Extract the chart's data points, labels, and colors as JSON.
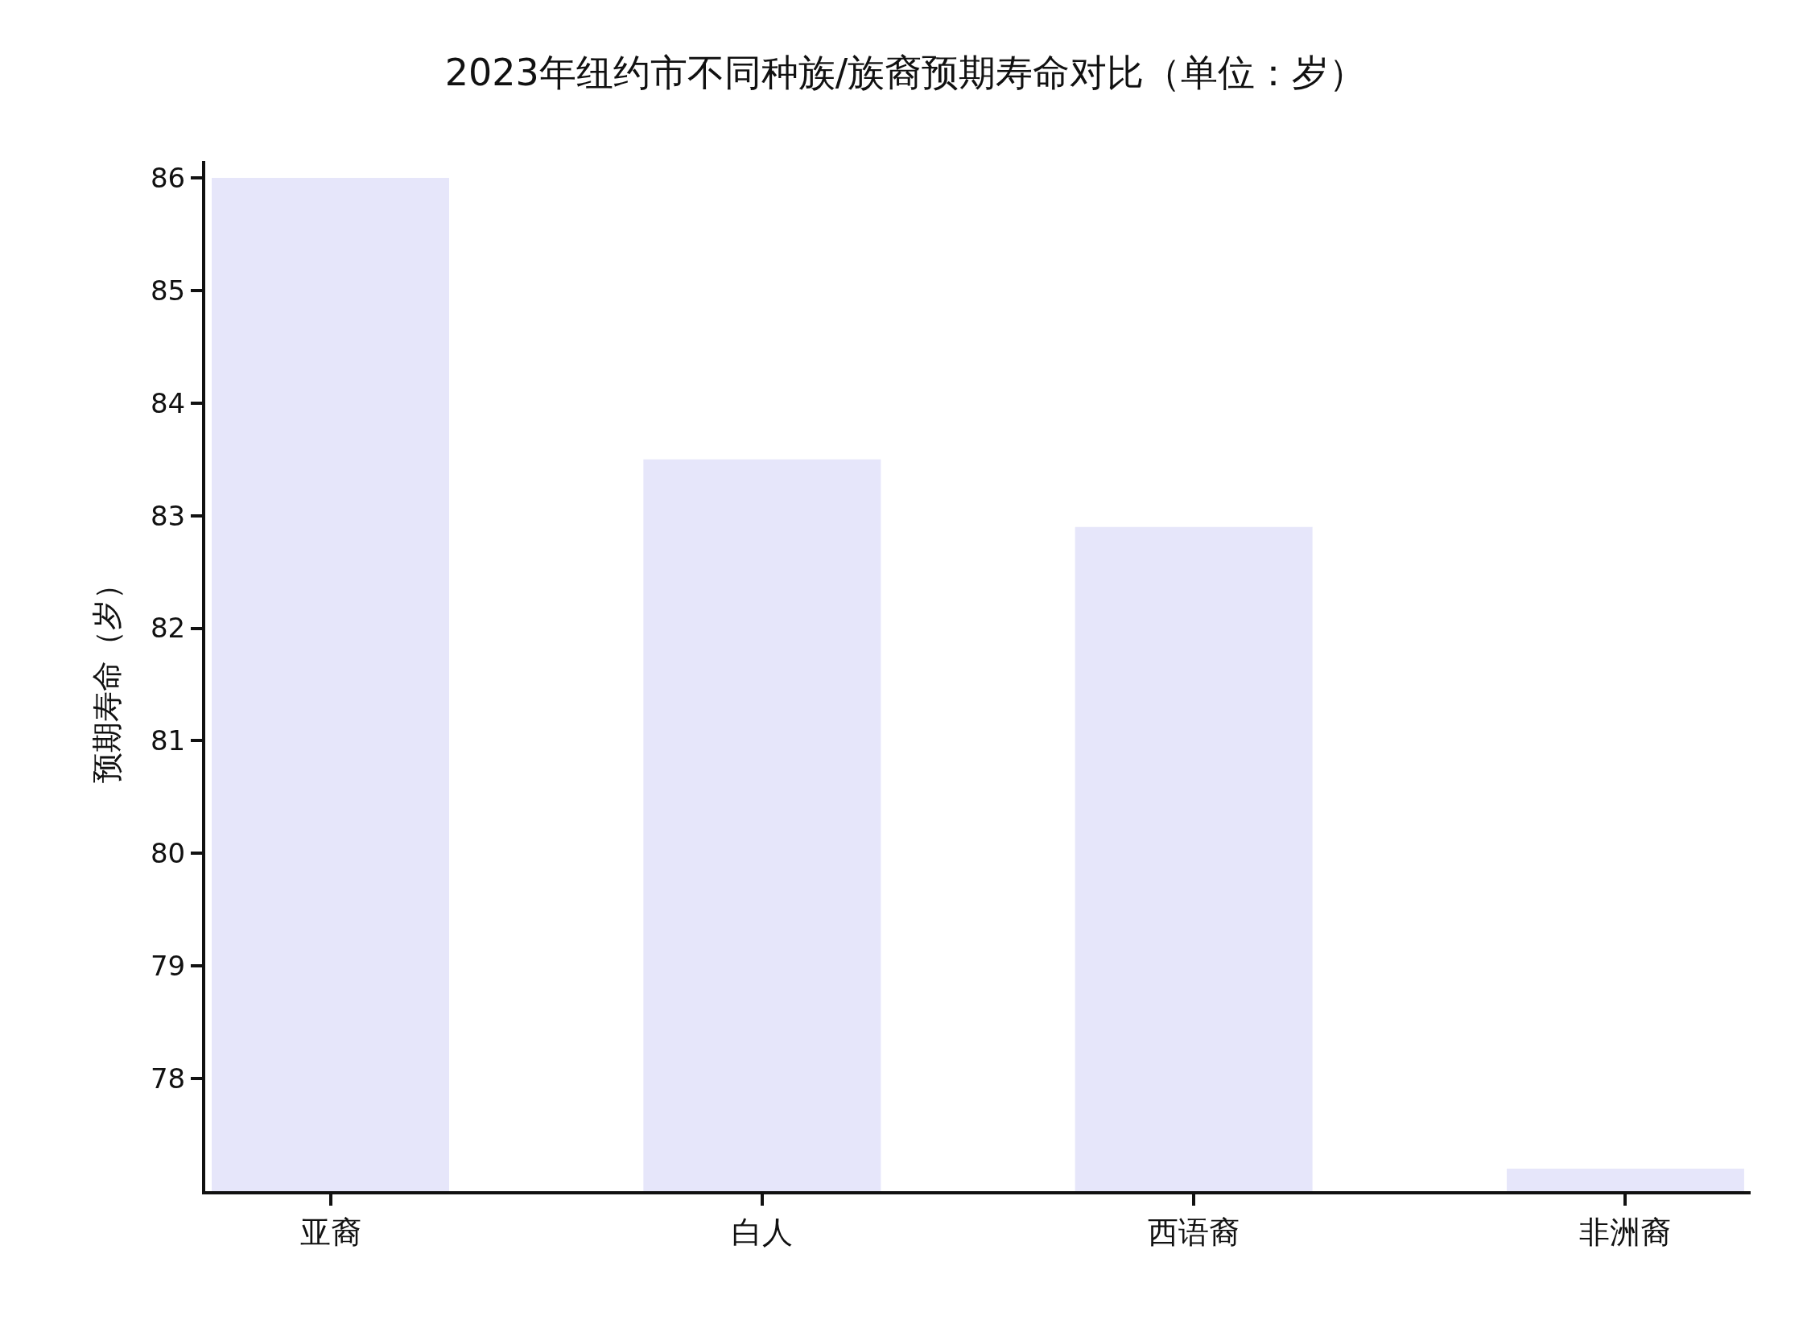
{
  "chart_data": {
    "type": "bar",
    "title": "2023年纽约市不同种族/族裔预期寿命对比（单位：岁）",
    "ylabel": "预期寿命（岁）",
    "categories": [
      "亚裔",
      "白人",
      "西语裔",
      "非洲裔"
    ],
    "values": [
      86,
      83.5,
      82.9,
      77.2
    ],
    "color": "#e6e6fa",
    "ylim": [
      77,
      86.15
    ],
    "yticks": [
      78,
      79,
      80,
      81,
      82,
      83,
      84,
      85,
      86
    ]
  }
}
